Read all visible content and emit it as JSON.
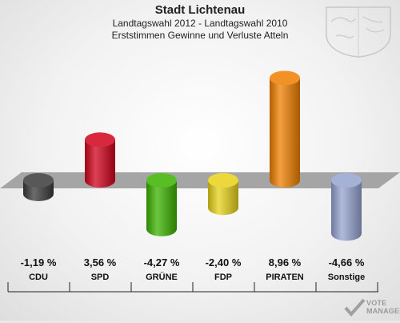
{
  "header": {
    "title": "Stadt Lichtenau",
    "subtitle": "Landtagswahl 2012 - Landtagswahl 2010",
    "subtitle2": "Erststimmen Gewinne und Verluste Atteln"
  },
  "watermark": {
    "line1": "VOTE",
    "line2": "MANAGER"
  },
  "chart_data": {
    "type": "bar",
    "categories": [
      "CDU",
      "SPD",
      "GRÜNE",
      "FDP",
      "PIRATEN",
      "Sonstige"
    ],
    "values": [
      -1.19,
      3.56,
      -4.27,
      -2.4,
      8.96,
      -4.66
    ],
    "value_labels": [
      "-1,19 %",
      "3,56 %",
      "-4,27 %",
      "-2,40 %",
      "8,96 %",
      "-4,66 %"
    ],
    "colors": [
      "#3b3b3b",
      "#d0021b",
      "#3cb300",
      "#e8d21a",
      "#f07f00",
      "#95a3d0"
    ],
    "ylim": [
      -5,
      10
    ],
    "grid": false,
    "legend": "none"
  }
}
